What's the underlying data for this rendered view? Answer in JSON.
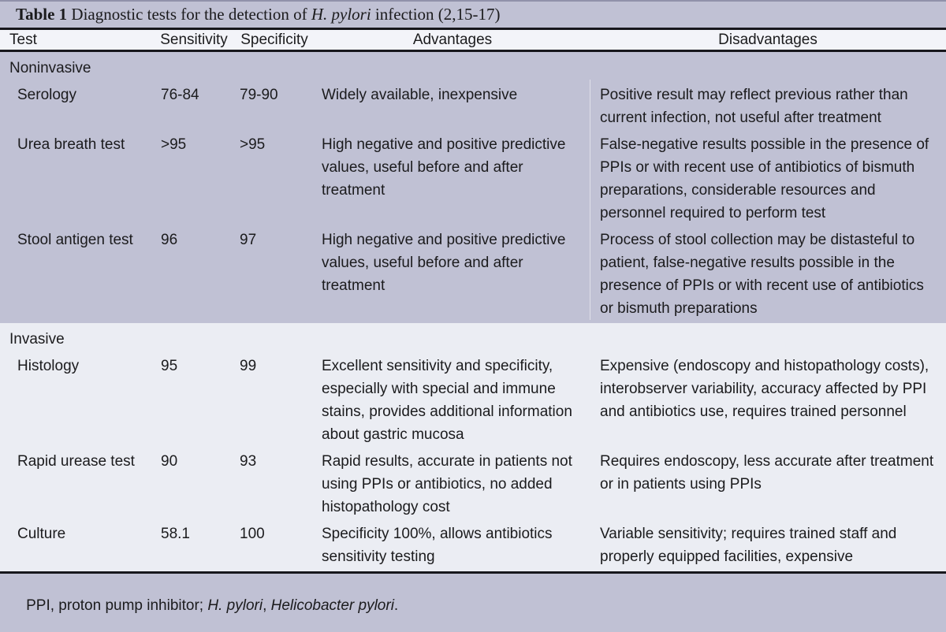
{
  "title": {
    "label": "Table 1",
    "pre": " Diagnostic tests for the detection of ",
    "italic": "H. pylori",
    "post": " infection (2,15-17)"
  },
  "columns": [
    "Test",
    "Sensitivity",
    "Specificity",
    "Advantages",
    "Disadvantages"
  ],
  "sections": [
    {
      "name": "Noninvasive",
      "rows": [
        {
          "test": "Serology",
          "sensitivity": "76-84",
          "specificity": "79-90",
          "advantages": "Widely available, inexpensive",
          "disadvantages": "Positive result may reflect previous rather than current infection, not useful after treatment"
        },
        {
          "test": "Urea breath test",
          "sensitivity": ">95",
          "specificity": ">95",
          "advantages": "High negative and positive predictive values, useful before and after treatment",
          "disadvantages": "False-negative results possible in the presence of PPIs or with recent use of antibiotics of bismuth preparations, considerable resources and personnel required to perform test"
        },
        {
          "test": "Stool antigen test",
          "sensitivity": "96",
          "specificity": "97",
          "advantages": "High negative and positive predictive values, useful before and after treatment",
          "disadvantages": "Process of stool collection may be distasteful to patient, false-negative results possible in the presence of PPIs or with recent use of antibiotics or bismuth preparations"
        }
      ]
    },
    {
      "name": "Invasive",
      "rows": [
        {
          "test": "Histology",
          "sensitivity": "95",
          "specificity": "99",
          "advantages": "Excellent sensitivity and specificity, especially with special and immune stains, provides additional information about gastric mucosa",
          "disadvantages": "Expensive (endoscopy and histopathology costs), interobserver variability, accuracy affected by PPI and antibiotics use, requires trained personnel"
        },
        {
          "test": "Rapid urease test",
          "sensitivity": "90",
          "specificity": "93",
          "advantages": "Rapid results, accurate in patients not using PPIs or antibiotics, no added histopathology cost",
          "disadvantages": "Requires endoscopy, less accurate after treatment or in patients using PPIs"
        },
        {
          "test": "Culture",
          "sensitivity": "58.1",
          "specificity": "100",
          "advantages": "Specificity 100%, allows antibiotics sensitivity testing",
          "disadvantages": "Variable sensitivity; requires trained staff and properly equipped facilities, expensive"
        }
      ]
    }
  ],
  "footnote": {
    "f1": "PPI, proton pump inhibitor; ",
    "i1": "H. pylori",
    "f2": ", ",
    "i2": "Helicobacter pylori",
    "f3": "."
  },
  "colors": {
    "lavender": "#c0c1d4",
    "header_bg": "#f3f4f9",
    "invasive_bg": "#ebedf3",
    "rule": "#17171c",
    "text": "#1b1b1d"
  }
}
